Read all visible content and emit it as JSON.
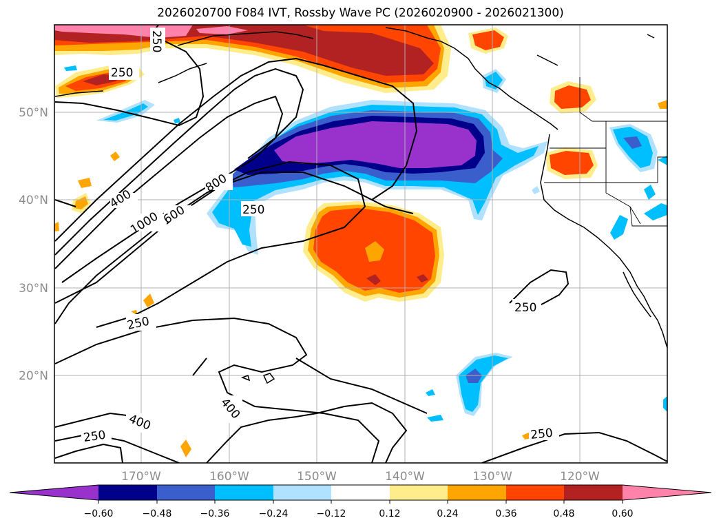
{
  "title": "2026020700 F084 IVT, Rossby Wave PC (2026020900 - 2026021300)",
  "map": {
    "lat_labels": [
      "50°N",
      "40°N",
      "30°N",
      "20°N"
    ],
    "lon_labels": [
      "170°W",
      "160°W",
      "150°W",
      "140°W",
      "130°W",
      "120°W"
    ],
    "contour_labels": [
      "250",
      "250",
      "400",
      "1000",
      "600",
      "800",
      "250",
      "250",
      "250",
      "400",
      "250",
      "400",
      "250"
    ]
  },
  "colorbar": {
    "colors": [
      "#9932cc",
      "#00008b",
      "#3a5fcd",
      "#00bfff",
      "#b0e2ff",
      "#ffffff",
      "#ffec8b",
      "#ffa500",
      "#ff4500",
      "#b22222",
      "#ff82ab"
    ],
    "tick_labels": [
      "−0.60",
      "−0.48",
      "−0.36",
      "−0.24",
      "−0.12",
      "0.12",
      "0.24",
      "0.36",
      "0.48",
      "0.60"
    ]
  }
}
